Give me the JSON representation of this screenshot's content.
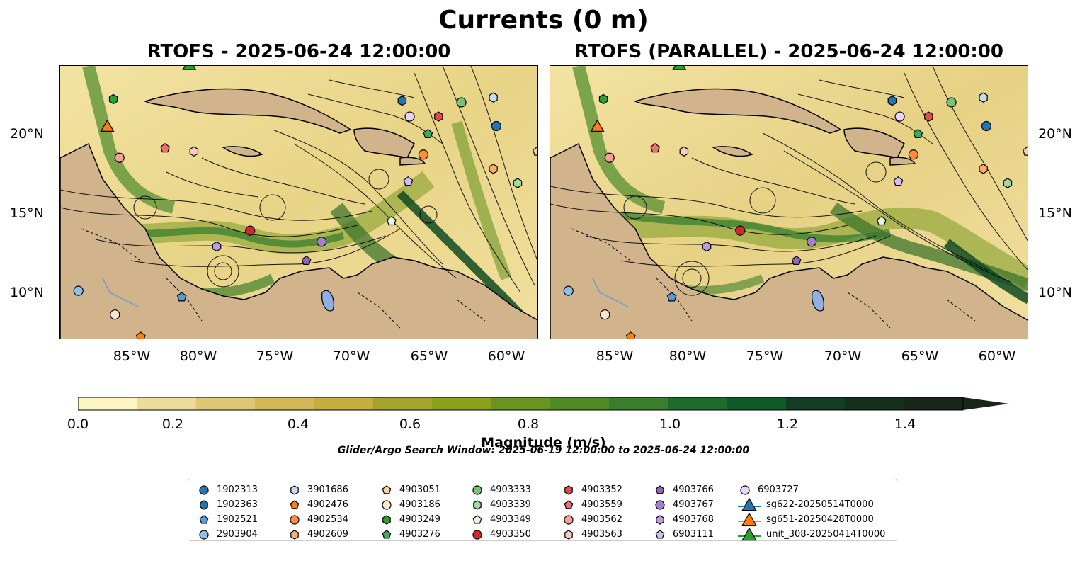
{
  "title": "Currents (0 m)",
  "panels": [
    {
      "title": "RTOFS - 2025-06-24 12:00:00"
    },
    {
      "title": "RTOFS (PARALLEL) - 2025-06-24 12:00:00"
    }
  ],
  "lat_labels": [
    "20°N",
    "15°N",
    "10°N"
  ],
  "lon_labels": [
    "85°W",
    "80°W",
    "75°W",
    "70°W",
    "65°W",
    "60°W"
  ],
  "colorbar": {
    "label": "Magnitude (m/s)",
    "ticks": [
      "0.0",
      "0.2",
      "0.4",
      "0.6",
      "0.8",
      "1.0",
      "1.2",
      "1.4"
    ],
    "colors": [
      "#fbf4c3",
      "#ecdc9c",
      "#dfc874",
      "#d2b856",
      "#c5ad3e",
      "#a3a52a",
      "#88a01a",
      "#6a9420",
      "#4f8a24",
      "#3a7d2a",
      "#1e6c2c",
      "#0f5a28",
      "#123d24",
      "#162e1c",
      "#18261a"
    ]
  },
  "search_window": "Glider/Argo Search Window: 2025-06-19 12:00:00 to 2025-06-24 12:00:00",
  "legend": [
    [
      {
        "label": "1902313",
        "shape": "circle",
        "color": "#1f77b4"
      },
      {
        "label": "1902363",
        "shape": "hexagon",
        "color": "#1f77b4"
      },
      {
        "label": "1902521",
        "shape": "pentagon",
        "color": "#5b9bd5"
      },
      {
        "label": "2903904",
        "shape": "circle",
        "color": "#8fc0e8"
      }
    ],
    [
      {
        "label": "3901686",
        "shape": "hexagon",
        "color": "#c6dbef"
      },
      {
        "label": "4902476",
        "shape": "pentagon",
        "color": "#ff7f0e"
      },
      {
        "label": "4902534",
        "shape": "circle",
        "color": "#fd8d3c"
      },
      {
        "label": "4902609",
        "shape": "hexagon",
        "color": "#fdae6b"
      }
    ],
    [
      {
        "label": "4903051",
        "shape": "pentagon",
        "color": "#fdd0a2"
      },
      {
        "label": "4903186",
        "shape": "circle",
        "color": "#fee6ce"
      },
      {
        "label": "4903249",
        "shape": "hexagon",
        "color": "#2ca02c"
      },
      {
        "label": "4903276",
        "shape": "pentagon",
        "color": "#41ab5d"
      }
    ],
    [
      {
        "label": "4903333",
        "shape": "circle",
        "color": "#74c476"
      },
      {
        "label": "4903339",
        "shape": "hexagon",
        "color": "#a1d99b"
      },
      {
        "label": "4903349",
        "shape": "pentagon",
        "color": "#e5f5e0"
      },
      {
        "label": "4903350",
        "shape": "circle",
        "color": "#d62728"
      }
    ],
    [
      {
        "label": "4903352",
        "shape": "hexagon",
        "color": "#e34a4a"
      },
      {
        "label": "4903559",
        "shape": "pentagon",
        "color": "#f07070"
      },
      {
        "label": "4903562",
        "shape": "circle",
        "color": "#f4a09b"
      },
      {
        "label": "4903563",
        "shape": "hexagon",
        "color": "#fbc9c4"
      }
    ],
    [
      {
        "label": "4903766",
        "shape": "pentagon",
        "color": "#9467bd"
      },
      {
        "label": "4903767",
        "shape": "circle",
        "color": "#a57fcf"
      },
      {
        "label": "4903768",
        "shape": "hexagon",
        "color": "#bc9ddc"
      },
      {
        "label": "6903111",
        "shape": "pentagon",
        "color": "#d4bdf0"
      }
    ],
    [
      {
        "label": "6903727",
        "shape": "circle",
        "color": "#e8d4fa"
      },
      {
        "label": "sg622-20250514T0000",
        "shape": "triangle",
        "color": "#1f77b4"
      },
      {
        "label": "sg651-20250428T0000",
        "shape": "triangle",
        "color": "#ff7f0e"
      },
      {
        "label": "unit_308-20250414T0000",
        "shape": "triangle",
        "color": "#2ca02c"
      }
    ]
  ],
  "floats": [
    {
      "name": "1902313",
      "shape": "circle",
      "color": "#1f77b4",
      "lon": -60.8,
      "lat": 20.5
    },
    {
      "name": "1902363",
      "shape": "hexagon",
      "color": "#1f77b4",
      "lon": -67.0,
      "lat": 22.1
    },
    {
      "name": "1902521",
      "shape": "pentagon",
      "color": "#5b9bd5",
      "lon": -81.5,
      "lat": 9.7
    },
    {
      "name": "2903904",
      "shape": "circle",
      "color": "#8fc0e8",
      "lon": -88.3,
      "lat": 10.1
    },
    {
      "name": "3901686",
      "shape": "hexagon",
      "color": "#c6dbef",
      "lon": -61.0,
      "lat": 22.3
    },
    {
      "name": "4902476",
      "shape": "pentagon",
      "color": "#ff7f0e",
      "lon": -84.2,
      "lat": 7.2
    },
    {
      "name": "4902534",
      "shape": "circle",
      "color": "#fd8d3c",
      "lon": -65.6,
      "lat": 18.7
    },
    {
      "name": "4902609",
      "shape": "hexagon",
      "color": "#fdae6b",
      "lon": -61.0,
      "lat": 17.8
    },
    {
      "name": "4903051",
      "shape": "pentagon",
      "color": "#fdd0a2",
      "lon": -58.1,
      "lat": 18.9
    },
    {
      "name": "4903186",
      "shape": "circle",
      "color": "#fee6ce",
      "lon": -85.9,
      "lat": 8.6
    },
    {
      "name": "4903249",
      "shape": "hexagon",
      "color": "#2ca02c",
      "lon": -86.0,
      "lat": 22.2
    },
    {
      "name": "4903276",
      "shape": "pentagon",
      "color": "#41ab5d",
      "lon": -65.3,
      "lat": 20.0
    },
    {
      "name": "4903333",
      "shape": "circle",
      "color": "#74c476",
      "lon": -63.1,
      "lat": 22.0
    },
    {
      "name": "4903339",
      "shape": "hexagon",
      "color": "#a1d99b",
      "lon": -59.4,
      "lat": 16.9
    },
    {
      "name": "4903349",
      "shape": "pentagon",
      "color": "#e5f5e0",
      "lon": -67.7,
      "lat": 14.5
    },
    {
      "name": "4903350",
      "shape": "circle",
      "color": "#d62728",
      "lon": -77.0,
      "lat": 13.9
    },
    {
      "name": "4903352",
      "shape": "hexagon",
      "color": "#e34a4a",
      "lon": -64.6,
      "lat": 21.1
    },
    {
      "name": "4903559",
      "shape": "pentagon",
      "color": "#f07070",
      "lon": -82.6,
      "lat": 19.1
    },
    {
      "name": "4903562",
      "shape": "circle",
      "color": "#f4a09b",
      "lon": -85.6,
      "lat": 18.5
    },
    {
      "name": "4903563",
      "shape": "hexagon",
      "color": "#fbc9c4",
      "lon": -80.7,
      "lat": 18.9
    },
    {
      "name": "4903766",
      "shape": "pentagon",
      "color": "#9467bd",
      "lon": -73.3,
      "lat": 12.0
    },
    {
      "name": "4903767",
      "shape": "circle",
      "color": "#a57fcf",
      "lon": -72.3,
      "lat": 13.2
    },
    {
      "name": "4903768",
      "shape": "hexagon",
      "color": "#bc9ddc",
      "lon": -79.2,
      "lat": 12.9
    },
    {
      "name": "6903111",
      "shape": "pentagon",
      "color": "#d4bdf0",
      "lon": -66.6,
      "lat": 17.0
    },
    {
      "name": "6903727",
      "shape": "circle",
      "color": "#e8d4fa",
      "lon": -66.5,
      "lat": 21.1
    },
    {
      "name": "sg651-20250428T0000",
      "shape": "triangle",
      "color": "#ff7f0e",
      "lon": -86.4,
      "lat": 20.4
    },
    {
      "name": "unit_308-20250414T0000",
      "shape": "triangle",
      "color": "#2ca02c",
      "lon": -81.0,
      "lat": 24.3
    }
  ]
}
